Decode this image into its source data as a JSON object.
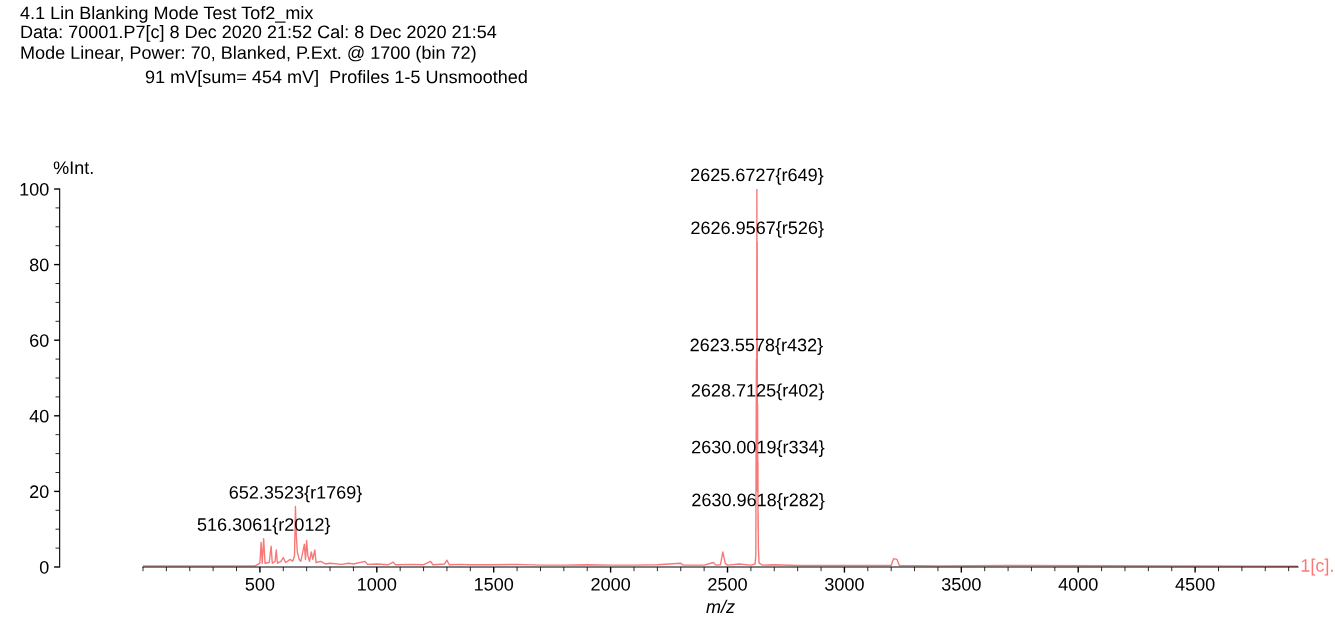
{
  "chart_data": {
    "type": "line",
    "title": "4.1 Lin Blanking Mode Test Tof2_mix",
    "subtitle": "Data: 70001.P7[c] 8 Dec 2020 21:52 Cal: 8 Dec 2020 21:54\nMode Linear, Power: 70, Blanked, P.Ext. @ 1700 (bin 72)",
    "xlabel": "m/z",
    "ylabel": "%Int.",
    "xlim": [
      0,
      4940
    ],
    "ylim": [
      0,
      100
    ],
    "xticks": [
      500,
      1000,
      1500,
      2000,
      2500,
      3000,
      3500,
      4000,
      4500
    ],
    "yticks": [
      0,
      20,
      40,
      60,
      80,
      100
    ],
    "grid": false,
    "legend": false,
    "marker": "none",
    "line_style": "solid",
    "series": [
      {
        "color": "#f87878",
        "x": [
          0,
          480,
          500,
          505,
          510,
          516,
          522,
          540,
          548,
          553,
          565,
          570,
          575,
          590,
          600,
          610,
          630,
          640,
          648,
          652,
          656,
          660,
          668,
          675,
          690,
          695,
          700,
          705,
          712,
          720,
          726,
          735,
          740,
          760,
          780,
          800,
          850,
          880,
          900,
          950,
          960,
          1000,
          1050,
          1070,
          1080,
          1150,
          1200,
          1230,
          1240,
          1290,
          1300,
          1310,
          1350,
          1400,
          1500,
          1600,
          1700,
          1800,
          1900,
          2000,
          2100,
          2200,
          2300,
          2310,
          2400,
          2440,
          2450,
          2470,
          2480,
          2490,
          2500,
          2550,
          2600,
          2618,
          2621,
          2623.56,
          2624.5,
          2625.67,
          2626.3,
          2626.96,
          2627.8,
          2628.71,
          2629.4,
          2630.0,
          2630.5,
          2630.96,
          2632,
          2635,
          2650,
          2700,
          2800,
          3000,
          3200,
          3210,
          3225,
          3235,
          3400,
          3700,
          4940
        ],
        "values": [
          0.3,
          0.3,
          1,
          6.5,
          1,
          7.5,
          1,
          1.2,
          5.5,
          1,
          1.5,
          4.5,
          1,
          1.5,
          2.5,
          1.2,
          2,
          1.5,
          3,
          16,
          8,
          4,
          2,
          1.5,
          6,
          2,
          7,
          3,
          1.5,
          4,
          2,
          4.5,
          1.2,
          1.5,
          0.8,
          1,
          0.7,
          1,
          0.8,
          1.5,
          0.7,
          0.8,
          0.6,
          1.3,
          0.6,
          0.7,
          0.6,
          1.5,
          0.6,
          0.8,
          1.8,
          0.6,
          0.7,
          0.6,
          0.6,
          0.7,
          0.5,
          0.5,
          0.6,
          0.5,
          0.5,
          0.6,
          1,
          0.5,
          0.5,
          1.2,
          0.5,
          0.6,
          4,
          1,
          0.5,
          0.8,
          0.5,
          0.8,
          3,
          55,
          20,
          100,
          50,
          86,
          40,
          43,
          20,
          28,
          10,
          14,
          5,
          1,
          0.5,
          0.6,
          0.4,
          0.4,
          0.4,
          2.2,
          2,
          0.4,
          0.3,
          0.4,
          0.2
        ]
      }
    ],
    "annotations": [
      "91 mV[sum= 454 mV]  Profiles 1-5 Unsmoothed",
      "1[c].",
      {
        "text": "2625.6727{r649}",
        "x": 2625.67,
        "y": 100
      },
      {
        "text": "2626.9567{r526}",
        "x": 2626.96,
        "y": 86
      },
      {
        "text": "2623.5578{r432}",
        "x": 2623.56,
        "y": 55
      },
      {
        "text": "2628.7125{r402}",
        "x": 2628.71,
        "y": 43
      },
      {
        "text": "2630.0019{r334}",
        "x": 2630.0,
        "y": 28
      },
      {
        "text": "2630.9618{r282}",
        "x": 2630.96,
        "y": 14
      },
      {
        "text": "652.3523{r1769}",
        "x": 652.35,
        "y": 16
      },
      {
        "text": "516.3061{r2012}",
        "x": 516.31,
        "y": 7.5
      }
    ]
  }
}
